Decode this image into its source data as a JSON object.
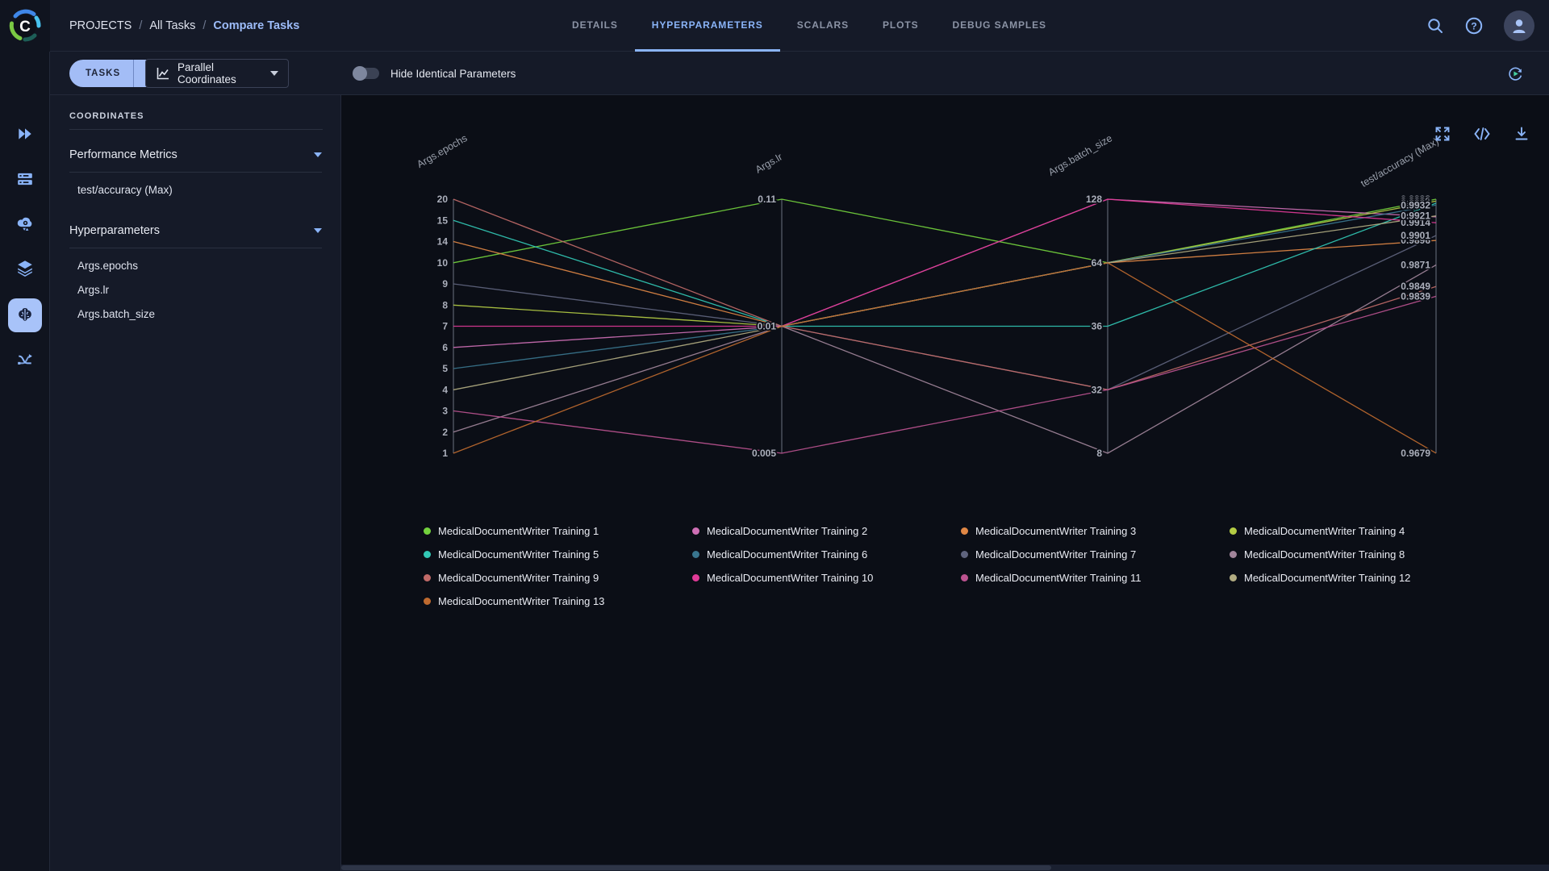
{
  "header": {
    "breadcrumb": [
      {
        "label": "PROJECTS",
        "current": false
      },
      {
        "label": "All Tasks",
        "current": false
      },
      {
        "label": "Compare Tasks",
        "current": true
      }
    ],
    "tabs": [
      {
        "label": "DETAILS",
        "active": false
      },
      {
        "label": "HYPERPARAMETERS",
        "active": true
      },
      {
        "label": "SCALARS",
        "active": false
      },
      {
        "label": "PLOTS",
        "active": false
      },
      {
        "label": "DEBUG SAMPLES",
        "active": false
      }
    ],
    "help_glyph": "?"
  },
  "toolbar": {
    "tasks_button": "TASKS",
    "plus_button": "+",
    "view_selector": "Parallel Coordinates",
    "hide_identical_label": "Hide Identical Parameters",
    "toggle_on": false
  },
  "coordinates_panel": {
    "title": "COORDINATES",
    "sections": [
      {
        "label": "Performance Metrics",
        "items": [
          "test/accuracy (Max)"
        ]
      },
      {
        "label": "Hyperparameters",
        "items": [
          "Args.epochs",
          "Args.lr",
          "Args.batch_size"
        ]
      }
    ]
  },
  "chart_data": {
    "type": "parallel-coordinates",
    "axes": [
      {
        "name": "Args.epochs",
        "kind": "categorical",
        "ticks": [
          "20",
          "15",
          "14",
          "10",
          "9",
          "8",
          "7",
          "6",
          "5",
          "4",
          "3",
          "2",
          "1"
        ]
      },
      {
        "name": "Args.lr",
        "kind": "categorical",
        "ticks": [
          "0.11",
          "0.01",
          "0.005"
        ]
      },
      {
        "name": "Args.batch_size",
        "kind": "categorical",
        "ticks": [
          "128",
          "64",
          "36",
          "32",
          "8"
        ]
      },
      {
        "name": "test/accuracy (Max)",
        "kind": "linear",
        "min": 0.9679,
        "max": 0.9938
      }
    ],
    "series": [
      {
        "name": "MedicalDocumentWriter Training 1",
        "color": "#73d13d",
        "epochs": "10",
        "lr": "0.11",
        "batch_size": "64",
        "accuracy": 0.9938
      },
      {
        "name": "MedicalDocumentWriter Training 2",
        "color": "#ce6fb5",
        "epochs": "6",
        "lr": "0.01",
        "batch_size": "128",
        "accuracy": 0.992
      },
      {
        "name": "MedicalDocumentWriter Training 3",
        "color": "#e08745",
        "epochs": "14",
        "lr": "0.01",
        "batch_size": "64",
        "accuracy": 0.9896
      },
      {
        "name": "MedicalDocumentWriter Training 4",
        "color": "#b4cc44",
        "epochs": "8",
        "lr": "0.01",
        "batch_size": "64",
        "accuracy": 0.9936
      },
      {
        "name": "MedicalDocumentWriter Training 5",
        "color": "#32c8b5",
        "epochs": "15",
        "lr": "0.01",
        "batch_size": "36",
        "accuracy": 0.9934
      },
      {
        "name": "MedicalDocumentWriter Training 6",
        "color": "#39758e",
        "epochs": "5",
        "lr": "0.01",
        "batch_size": "64",
        "accuracy": 0.9932
      },
      {
        "name": "MedicalDocumentWriter Training 7",
        "color": "#5f647e",
        "epochs": "9",
        "lr": "0.01",
        "batch_size": "32",
        "accuracy": 0.9901
      },
      {
        "name": "MedicalDocumentWriter Training 8",
        "color": "#a2859b",
        "epochs": "2",
        "lr": "0.01",
        "batch_size": "8",
        "accuracy": 0.9871
      },
      {
        "name": "MedicalDocumentWriter Training 9",
        "color": "#c16a68",
        "epochs": "20",
        "lr": "0.01",
        "batch_size": "32",
        "accuracy": 0.9849
      },
      {
        "name": "MedicalDocumentWriter Training 10",
        "color": "#e03a97",
        "epochs": "7",
        "lr": "0.01",
        "batch_size": "128",
        "accuracy": 0.9914
      },
      {
        "name": "MedicalDocumentWriter Training 11",
        "color": "#bc5390",
        "epochs": "3",
        "lr": "0.005",
        "batch_size": "32",
        "accuracy": 0.9839
      },
      {
        "name": "MedicalDocumentWriter Training 12",
        "color": "#b2ac82",
        "epochs": "4",
        "lr": "0.01",
        "batch_size": "64",
        "accuracy": 0.9921
      },
      {
        "name": "MedicalDocumentWriter Training 13",
        "color": "#bf6a2f",
        "epochs": "1",
        "lr": "0.01",
        "batch_size": "64",
        "accuracy": 0.9679
      }
    ]
  },
  "colors": {
    "accent": "#8ab4f8",
    "chart_bg": "#0b0e16",
    "tick_text": "#abafbb",
    "axis_line": "#6b7280"
  }
}
